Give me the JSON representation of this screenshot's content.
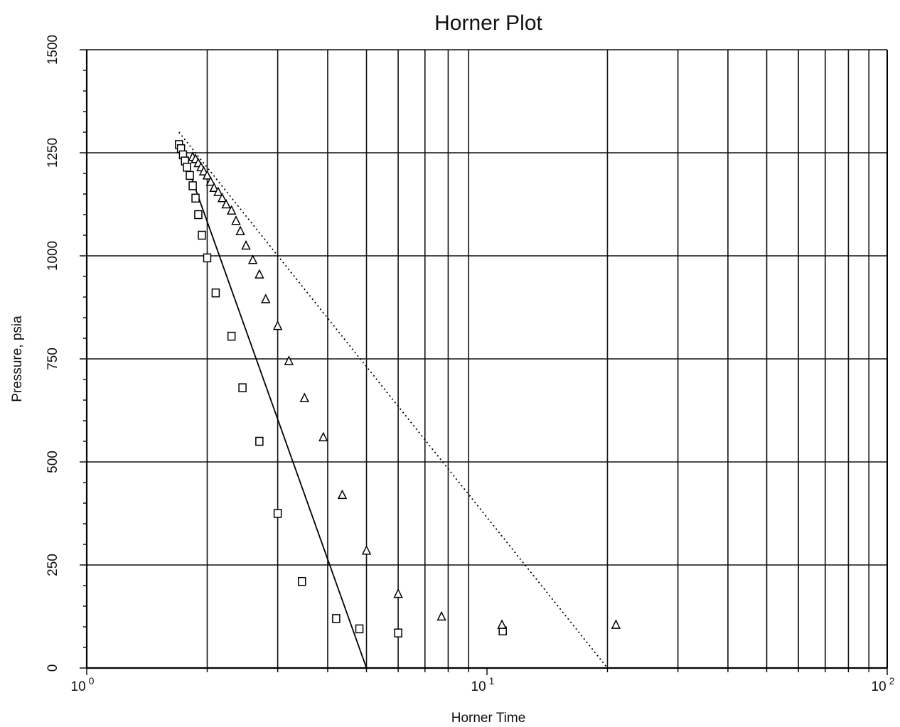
{
  "chart_data": {
    "type": "scatter",
    "title": "Horner Plot",
    "xlabel": "Horner Time",
    "ylabel": "Pressure, psia",
    "xscale": "log",
    "xlim": [
      1,
      100
    ],
    "ylim": [
      0,
      1500
    ],
    "grid": true,
    "legend": "none",
    "x_tick_labels": [
      {
        "base": "10",
        "exp": "0",
        "value": 1
      },
      {
        "base": "10",
        "exp": "1",
        "value": 10
      },
      {
        "base": "10",
        "exp": "2",
        "value": 100
      }
    ],
    "y_ticks": [
      0,
      250,
      500,
      750,
      1000,
      1250,
      1500
    ],
    "y_tick_labels": [
      "0",
      "250",
      "500",
      "750",
      "1000",
      "1250",
      "1500"
    ],
    "series": [
      {
        "marker": "square",
        "x": [
          1.7,
          1.72,
          1.74,
          1.76,
          1.78,
          1.81,
          1.84,
          1.87,
          1.9,
          1.94,
          2.0,
          2.1,
          2.3,
          2.45,
          2.7,
          3.0,
          3.45,
          4.2,
          4.8,
          6.0,
          10.95
        ],
        "y": [
          1270,
          1260,
          1245,
          1230,
          1215,
          1195,
          1170,
          1140,
          1100,
          1050,
          995,
          910,
          805,
          680,
          550,
          375,
          210,
          120,
          95,
          85,
          90
        ]
      },
      {
        "marker": "triangle",
        "x": [
          1.84,
          1.87,
          1.9,
          1.93,
          1.96,
          2.0,
          2.04,
          2.08,
          2.13,
          2.18,
          2.23,
          2.3,
          2.36,
          2.42,
          2.5,
          2.6,
          2.7,
          2.8,
          3.0,
          3.2,
          3.5,
          3.9,
          4.35,
          5.0,
          6.0,
          7.7,
          10.9,
          21.0
        ],
        "y": [
          1240,
          1235,
          1225,
          1215,
          1205,
          1195,
          1180,
          1165,
          1155,
          1140,
          1125,
          1110,
          1085,
          1060,
          1025,
          990,
          955,
          895,
          830,
          745,
          655,
          560,
          420,
          285,
          180,
          125,
          105,
          105
        ]
      }
    ],
    "lines": [
      {
        "style": "solid",
        "x": [
          1.7,
          5.0
        ],
        "y": [
          1275,
          0
        ]
      },
      {
        "style": "dotted",
        "x": [
          1.7,
          20.0
        ],
        "y": [
          1300,
          0
        ]
      }
    ]
  }
}
